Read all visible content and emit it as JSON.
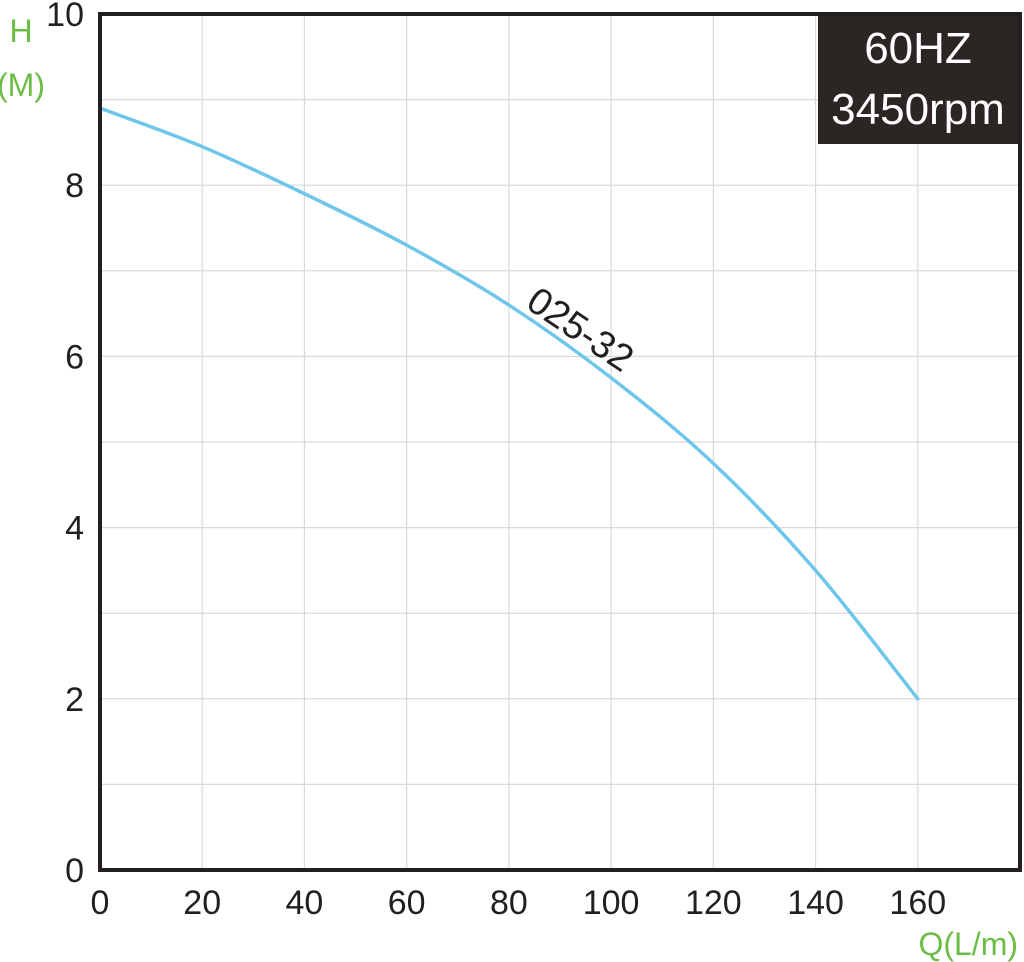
{
  "chart_data": {
    "type": "line",
    "xlabel": "Q(L/m)",
    "ylabel_lines": [
      "H",
      "(M)"
    ],
    "xlim": [
      0,
      180
    ],
    "ylim": [
      0,
      10
    ],
    "x_ticks": [
      0,
      20,
      40,
      60,
      80,
      100,
      120,
      140,
      160
    ],
    "y_ticks": [
      0,
      2,
      4,
      6,
      8,
      10
    ],
    "grid": true,
    "badge": {
      "lines": [
        "60HZ",
        "3450rpm"
      ],
      "position": "top-right"
    },
    "series": [
      {
        "name": "025-32",
        "x": [
          0,
          20,
          40,
          60,
          80,
          100,
          120,
          140,
          160
        ],
        "y": [
          8.9,
          8.45,
          7.9,
          7.3,
          6.6,
          5.75,
          4.75,
          3.5,
          2.0
        ]
      }
    ]
  },
  "colors": {
    "curve": "#6ec6ea",
    "axis": "#231f20",
    "grid": "#d9d9d9",
    "unit_label": "#6cbd45",
    "badge_bg": "#2b2523",
    "badge_text": "#ffffff"
  }
}
